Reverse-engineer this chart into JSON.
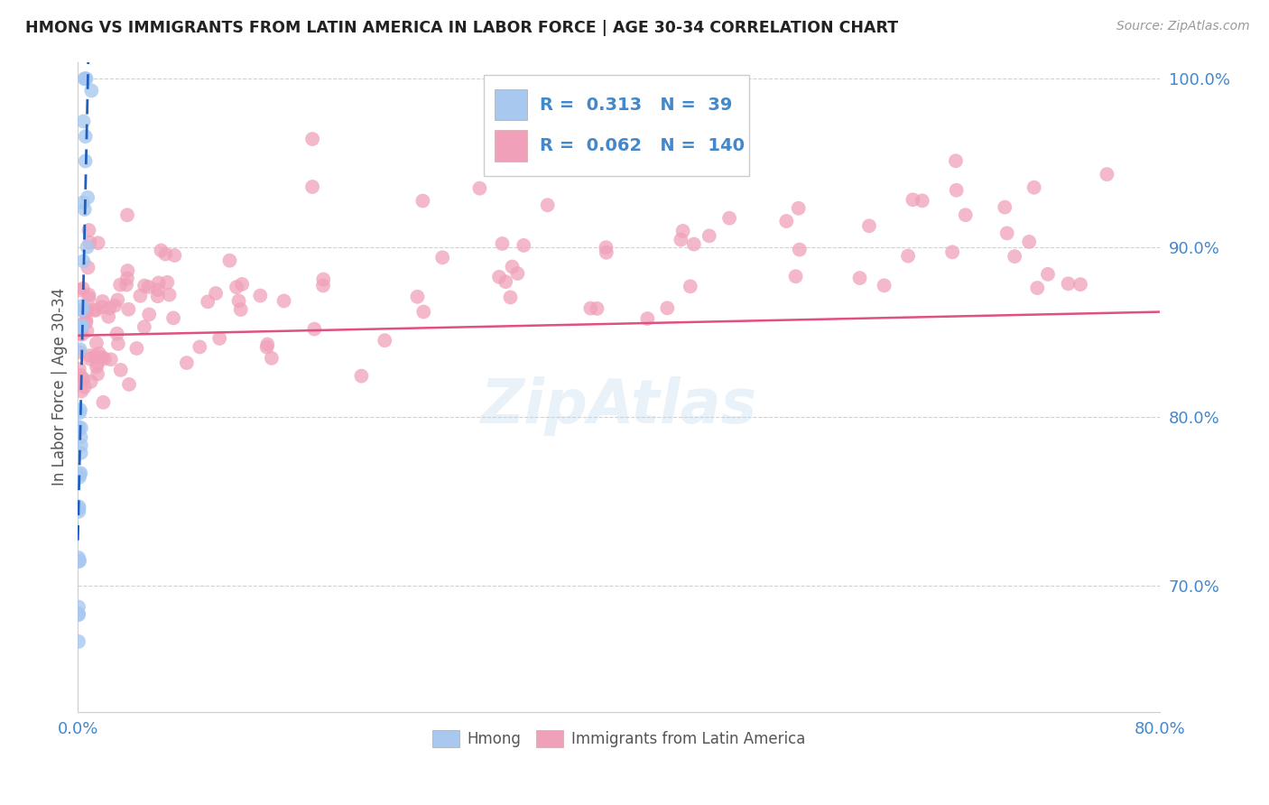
{
  "title": "HMONG VS IMMIGRANTS FROM LATIN AMERICA IN LABOR FORCE | AGE 30-34 CORRELATION CHART",
  "source": "Source: ZipAtlas.com",
  "ylabel": "In Labor Force | Age 30-34",
  "hmong_R": 0.313,
  "hmong_N": 39,
  "latin_R": 0.062,
  "latin_N": 140,
  "blue_color": "#a8c8f0",
  "blue_line_color": "#2060c0",
  "pink_color": "#f0a0b8",
  "pink_line_color": "#e05080",
  "background_color": "#ffffff",
  "grid_color": "#cccccc",
  "title_color": "#222222",
  "tick_label_color": "#4488cc",
  "xlim": [
    0.0,
    0.8
  ],
  "ylim": [
    0.625,
    1.01
  ],
  "yticks": [
    0.7,
    0.8,
    0.9,
    1.0
  ],
  "ytick_labels": [
    "70.0%",
    "80.0%",
    "90.0%",
    "100.0%"
  ],
  "hmong_seed": 77,
  "latin_seed": 42
}
